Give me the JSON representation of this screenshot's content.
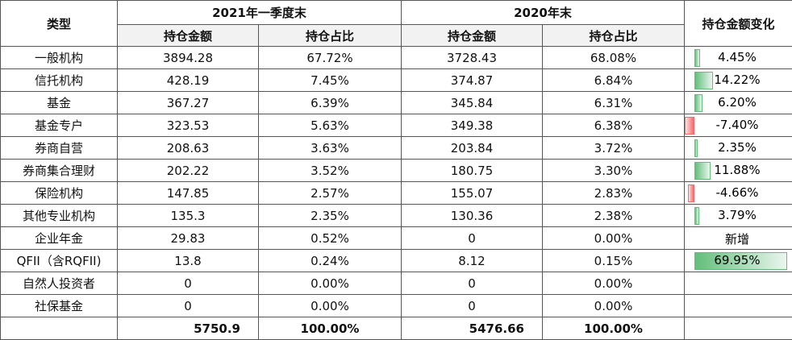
{
  "header": {
    "type": "类型",
    "period1": "2021年一季度末",
    "period2": "2020年末",
    "change": "持仓金额变化",
    "sub": [
      "持仓金额",
      "持仓占比",
      "持仓金额",
      "持仓占比"
    ]
  },
  "rows": [
    [
      "一般机构",
      "3894.28",
      "67.72%",
      "3728.43",
      "68.08%"
    ],
    [
      "信托机构",
      "428.19",
      "7.45%",
      "374.87",
      "6.84%"
    ],
    [
      "基金",
      "367.27",
      "6.39%",
      "345.84",
      "6.31%"
    ],
    [
      "基金专户",
      "323.53",
      "5.63%",
      "349.38",
      "6.38%"
    ],
    [
      "券商自营",
      "208.63",
      "3.63%",
      "203.84",
      "3.72%"
    ],
    [
      "券商集合理财",
      "202.22",
      "3.52%",
      "180.75",
      "3.30%"
    ],
    [
      "保险机构",
      "147.85",
      "2.57%",
      "155.07",
      "2.83%"
    ],
    [
      "其他专业机构",
      "135.3",
      "2.35%",
      "130.36",
      "2.38%"
    ],
    [
      "企业年金",
      "29.83",
      "0.52%",
      "0",
      "0.00%"
    ],
    [
      "QFII（含RQFII)",
      "13.8",
      "0.24%",
      "8.12",
      "0.15%"
    ],
    [
      "自然人投资者",
      "0",
      "0.00%",
      "0",
      "0.00%"
    ],
    [
      "社保基金",
      "0",
      "0.00%",
      "0",
      "0.00%"
    ]
  ],
  "change": {
    "values": [
      4.45,
      14.22,
      6.2,
      -7.4,
      2.35,
      11.88,
      -4.66,
      3.79,
      null,
      69.95,
      null,
      null
    ],
    "value_labels": [
      "4.45%",
      "14.22%",
      "6.20%",
      "-7.40%",
      "2.35%",
      "11.88%",
      "-4.66%",
      "3.79%",
      "新增",
      "69.95%",
      null,
      null
    ]
  },
  "total": [
    "5750.9",
    "100.00%",
    "5476.66",
    "100.00%"
  ]
}
